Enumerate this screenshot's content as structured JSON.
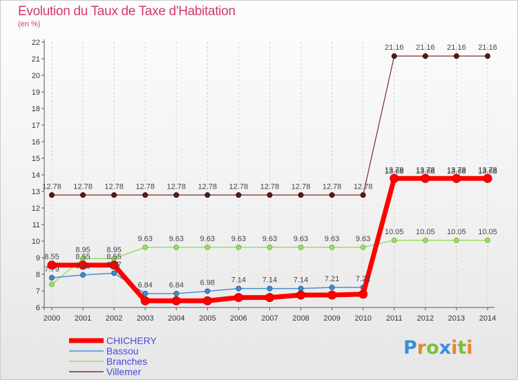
{
  "title": "Evolution du Taux de Taxe d'Habitation",
  "unit": "(en %)",
  "logo": {
    "letters": [
      "P",
      "r",
      "o",
      "x",
      "i",
      "t",
      "i"
    ],
    "colors": [
      "#3a8fd8",
      "#e8872a",
      "#7bbf3a",
      "#3a8fd8",
      "#e8872a",
      "#7bbf3a",
      "#e8872a"
    ]
  },
  "chart_data": {
    "type": "line",
    "title": "Evolution du Taux de Taxe d'Habitation",
    "ylabel": "(en %)",
    "xlabel": "",
    "x": [
      "2000",
      "2001",
      "2002",
      "2003",
      "2004",
      "2005",
      "2006",
      "2007",
      "2008",
      "2009",
      "2010",
      "2011",
      "2012",
      "2013",
      "2014"
    ],
    "ylim": [
      6,
      22
    ],
    "yticks": [
      6,
      7,
      8,
      9,
      10,
      11,
      12,
      13,
      14,
      15,
      16,
      17,
      18,
      19,
      20,
      21,
      22
    ],
    "grid": "vertical dashed",
    "legend_position": "bottom-left",
    "series": [
      {
        "name": "CHICHERY",
        "color": "#ff0000",
        "values": [
          8.55,
          8.55,
          8.55,
          6.4,
          6.4,
          6.4,
          6.6,
          6.6,
          6.75,
          6.75,
          6.8,
          13.78,
          13.78,
          13.78,
          13.78
        ],
        "labels": [
          "8.55",
          "8.55",
          "8.55",
          "",
          "",
          "",
          "",
          "",
          "",
          "",
          "",
          "13.78",
          "13.78",
          "13.78",
          "13.78"
        ]
      },
      {
        "name": "Bassou",
        "color": "#4a8fd0",
        "values": [
          7.79,
          7.96,
          8.07,
          6.84,
          6.84,
          6.98,
          7.14,
          7.14,
          7.14,
          7.21,
          7.21,
          13.68,
          13.68,
          13.68,
          13.68
        ],
        "labels": [
          "7.79",
          "7.96",
          "8.07",
          "6.84",
          "6.84",
          "6.98",
          "7.14",
          "7.14",
          "7.14",
          "7.21",
          "7.21",
          "13.68",
          "13.68",
          "13.68",
          "13.68"
        ]
      },
      {
        "name": "Branches",
        "color": "#99dd66",
        "values": [
          7.4,
          8.95,
          8.95,
          9.63,
          9.63,
          9.63,
          9.63,
          9.63,
          9.63,
          9.63,
          9.63,
          10.05,
          10.05,
          10.05,
          10.05
        ],
        "labels": [
          "",
          "8.95",
          "8.95",
          "9.63",
          "9.63",
          "9.63",
          "9.63",
          "9.63",
          "9.63",
          "9.63",
          "9.63",
          "10.05",
          "10.05",
          "10.05",
          "10.05"
        ]
      },
      {
        "name": "Villemer",
        "color": "#7a2a2a",
        "values": [
          12.78,
          12.78,
          12.78,
          12.78,
          12.78,
          12.78,
          12.78,
          12.78,
          12.78,
          12.78,
          12.78,
          21.16,
          21.16,
          21.16,
          21.16
        ],
        "labels": [
          "12.78",
          "12.78",
          "12.78",
          "12.78",
          "12.78",
          "12.78",
          "12.78",
          "12.78",
          "12.78",
          "12.78",
          "12.78",
          "21.16",
          "21.16",
          "21.16",
          "21.16"
        ]
      }
    ]
  }
}
